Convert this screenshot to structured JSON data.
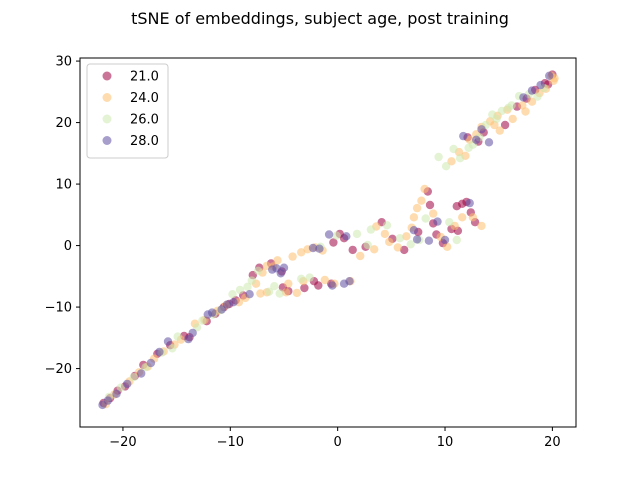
{
  "chart_data": {
    "type": "scatter",
    "title": "tSNE of embeddings, subject age, post training",
    "xlabel": "",
    "ylabel": "",
    "xlim": [
      -24,
      22.2
    ],
    "ylim": [
      -29.5,
      30.5
    ],
    "xticks": [
      -20,
      -10,
      0,
      10,
      20
    ],
    "yticks": [
      -20,
      -10,
      0,
      10,
      20,
      30
    ],
    "grid": false,
    "legend_position": "top-left",
    "series": [
      {
        "name": "21.0",
        "color": "#9e0142",
        "points": [
          [
            -21.8,
            -25.6
          ],
          [
            -21.2,
            -24.8
          ],
          [
            -20.5,
            -23.6
          ],
          [
            -19.8,
            -22.9
          ],
          [
            -18.9,
            -21.2
          ],
          [
            -18.1,
            -19.4
          ],
          [
            -16.8,
            -17.6
          ],
          [
            -15.6,
            -16.2
          ],
          [
            -14.3,
            -14.7
          ],
          [
            -13.8,
            -14.9
          ],
          [
            -12.2,
            -12.3
          ],
          [
            -11.4,
            -11.1
          ],
          [
            -10.6,
            -10.0
          ],
          [
            -10.1,
            -9.5
          ],
          [
            -9.5,
            -8.9
          ],
          [
            -8.8,
            -8.1
          ],
          [
            -7.9,
            -4.8
          ],
          [
            -7.3,
            -3.6
          ],
          [
            -6.2,
            -2.9
          ],
          [
            -5.2,
            -4.2
          ],
          [
            -5.1,
            -6.8
          ],
          [
            -4.6,
            -7.4
          ],
          [
            -3.1,
            -6.9
          ],
          [
            -2.2,
            -5.8
          ],
          [
            -1.8,
            -6.5
          ],
          [
            -0.6,
            -6.2
          ],
          [
            -0.4,
            0.5
          ],
          [
            0.2,
            1.9
          ],
          [
            0.6,
            1.2
          ],
          [
            1.4,
            -0.7
          ],
          [
            2.6,
            -0.2
          ],
          [
            4.1,
            3.8
          ],
          [
            5.1,
            1.1
          ],
          [
            6.2,
            -0.7
          ],
          [
            7.5,
            2.2
          ],
          [
            8.4,
            8.8
          ],
          [
            8.6,
            6.6
          ],
          [
            8.9,
            3.6
          ],
          [
            9.2,
            1.8
          ],
          [
            9.8,
            0.4
          ],
          [
            10.6,
            2.7
          ],
          [
            11.1,
            6.4
          ],
          [
            11.6,
            6.8
          ],
          [
            12.0,
            7.1
          ],
          [
            12.4,
            5.4
          ],
          [
            12.8,
            3.8
          ],
          [
            11.2,
            2.4
          ],
          [
            12.1,
            17.6
          ],
          [
            13.1,
            16.9
          ],
          [
            13.6,
            18.4
          ],
          [
            15.6,
            19.6
          ],
          [
            16.7,
            22.6
          ],
          [
            17.6,
            23.9
          ],
          [
            18.4,
            25.3
          ],
          [
            19.3,
            26.4
          ],
          [
            20.0,
            27.8
          ],
          [
            19.6,
            26.2
          ]
        ]
      },
      {
        "name": "24.0",
        "color": "#fdbf6f",
        "points": [
          [
            -21.6,
            -25.8
          ],
          [
            -20.8,
            -24.2
          ],
          [
            -19.4,
            -22.1
          ],
          [
            -18.5,
            -20.6
          ],
          [
            -17.7,
            -19.7
          ],
          [
            -17.1,
            -18.4
          ],
          [
            -16.2,
            -17.2
          ],
          [
            -15.2,
            -16.1
          ],
          [
            -14.6,
            -15.3
          ],
          [
            -13.3,
            -12.7
          ],
          [
            -12.4,
            -12.1
          ],
          [
            -11.2,
            -10.6
          ],
          [
            -10.4,
            -9.7
          ],
          [
            -9.2,
            -9.2
          ],
          [
            -8.6,
            -8.5
          ],
          [
            -7.6,
            -6.2
          ],
          [
            -7.0,
            -4.4
          ],
          [
            -6.6,
            -3.3
          ],
          [
            -6.0,
            -3.4
          ],
          [
            -5.6,
            -2.4
          ],
          [
            -4.2,
            -1.8
          ],
          [
            -3.4,
            -1.1
          ],
          [
            -2.8,
            -0.6
          ],
          [
            -2.1,
            -0.3
          ],
          [
            -1.4,
            -0.8
          ],
          [
            -4.6,
            -6.2
          ],
          [
            -3.8,
            -7.7
          ],
          [
            -4.8,
            -7.6
          ],
          [
            -6.6,
            -7.6
          ],
          [
            -7.2,
            -7.8
          ],
          [
            -3.2,
            -5.8
          ],
          [
            -1.2,
            -5.6
          ],
          [
            -0.3,
            -6.2
          ],
          [
            1.2,
            -5.8
          ],
          [
            2.1,
            -1.7
          ],
          [
            3.4,
            -0.6
          ],
          [
            3.6,
            3.1
          ],
          [
            4.4,
            1.9
          ],
          [
            4.8,
            0.6
          ],
          [
            5.6,
            -0.3
          ],
          [
            6.4,
            1.5
          ],
          [
            6.9,
            2.9
          ],
          [
            7.1,
            4.6
          ],
          [
            7.4,
            6.1
          ],
          [
            7.8,
            7.3
          ],
          [
            8.1,
            9.2
          ],
          [
            8.9,
            5.2
          ],
          [
            9.6,
            1.4
          ],
          [
            10.2,
            -0.2
          ],
          [
            10.9,
            3.2
          ],
          [
            11.6,
            4.6
          ],
          [
            12.6,
            4.6
          ],
          [
            13.4,
            3.2
          ],
          [
            10.6,
            13.7
          ],
          [
            11.3,
            15.2
          ],
          [
            11.9,
            14.6
          ],
          [
            12.3,
            17.2
          ],
          [
            12.9,
            18.1
          ],
          [
            13.4,
            19.3
          ],
          [
            14.2,
            20.2
          ],
          [
            14.9,
            21.1
          ],
          [
            15.8,
            22.1
          ],
          [
            16.3,
            20.6
          ],
          [
            17.2,
            22.8
          ],
          [
            18.1,
            23.4
          ],
          [
            18.8,
            24.8
          ],
          [
            19.4,
            25.5
          ],
          [
            20.2,
            27.2
          ],
          [
            20.1,
            26.8
          ],
          [
            19.9,
            27.6
          ],
          [
            17.5,
            21.8
          ],
          [
            15.1,
            18.7
          ],
          [
            14.6,
            19.6
          ]
        ]
      },
      {
        "name": "26.0",
        "color": "#cdeab0",
        "points": [
          [
            -21.3,
            -24.6
          ],
          [
            -20.2,
            -23.1
          ],
          [
            -19.0,
            -21.4
          ],
          [
            -17.9,
            -19.8
          ],
          [
            -16.4,
            -17.4
          ],
          [
            -15.4,
            -16.7
          ],
          [
            -14.9,
            -14.8
          ],
          [
            -13.1,
            -13.3
          ],
          [
            -12.6,
            -12.2
          ],
          [
            -11.6,
            -11.2
          ],
          [
            -10.9,
            -10.5
          ],
          [
            -9.8,
            -7.9
          ],
          [
            -9.1,
            -7.2
          ],
          [
            -8.4,
            -6.7
          ],
          [
            -8.0,
            -5.7
          ],
          [
            -7.4,
            -4.1
          ],
          [
            -6.4,
            -7.5
          ],
          [
            -5.9,
            -6.6
          ],
          [
            -5.4,
            -7.8
          ],
          [
            -3.4,
            -5.4
          ],
          [
            -2.6,
            -5.2
          ],
          [
            -1.6,
            -0.2
          ],
          [
            -0.1,
            1.6
          ],
          [
            1.8,
            1.9
          ],
          [
            2.8,
            0.1
          ],
          [
            3.1,
            2.6
          ],
          [
            4.6,
            3.3
          ],
          [
            5.8,
            1.2
          ],
          [
            6.8,
            0.2
          ],
          [
            7.6,
            0.9
          ],
          [
            8.2,
            4.4
          ],
          [
            9.4,
            14.4
          ],
          [
            10.1,
            12.9
          ],
          [
            10.8,
            15.7
          ],
          [
            11.4,
            14.2
          ],
          [
            12.2,
            15.9
          ],
          [
            10.4,
            3.8
          ],
          [
            11.1,
            0.9
          ],
          [
            13.8,
            19.6
          ],
          [
            14.4,
            21.3
          ],
          [
            15.3,
            21.9
          ],
          [
            16.2,
            22.8
          ],
          [
            16.9,
            24.3
          ],
          [
            17.8,
            24.6
          ],
          [
            18.6,
            24.2
          ],
          [
            19.2,
            25.6
          ],
          [
            12.6,
            16.4
          ],
          [
            13.2,
            17.6
          ],
          [
            14.8,
            20.6
          ],
          [
            15.9,
            22.4
          ]
        ]
      },
      {
        "name": "28.0",
        "color": "#5e4fa2",
        "points": [
          [
            -21.9,
            -25.9
          ],
          [
            -21.4,
            -25.2
          ],
          [
            -20.6,
            -24.1
          ],
          [
            -19.6,
            -22.5
          ],
          [
            -18.3,
            -20.8
          ],
          [
            -17.4,
            -19.1
          ],
          [
            -16.6,
            -17.3
          ],
          [
            -15.8,
            -15.6
          ],
          [
            -13.9,
            -15.2
          ],
          [
            -13.5,
            -14.2
          ],
          [
            -12.1,
            -11.2
          ],
          [
            -11.7,
            -10.9
          ],
          [
            -10.8,
            -10.4
          ],
          [
            -10.3,
            -9.6
          ],
          [
            -9.7,
            -9.2
          ],
          [
            -8.2,
            -7.9
          ],
          [
            -6.1,
            -3.9
          ],
          [
            -5.7,
            -3.7
          ],
          [
            -5.3,
            -4.5
          ],
          [
            -5.0,
            -3.6
          ],
          [
            -2.3,
            -0.4
          ],
          [
            -1.7,
            -0.5
          ],
          [
            -0.8,
            1.8
          ],
          [
            -0.5,
            -6.5
          ],
          [
            0.6,
            -6.2
          ],
          [
            0.8,
            1.5
          ],
          [
            1.1,
            -5.8
          ],
          [
            7.1,
            2.5
          ],
          [
            7.4,
            1.0
          ],
          [
            8.5,
            0.8
          ],
          [
            9.3,
            3.9
          ],
          [
            10.0,
            0.9
          ],
          [
            12.3,
            6.9
          ],
          [
            11.7,
            17.8
          ],
          [
            12.9,
            17.2
          ],
          [
            13.4,
            18.9
          ],
          [
            14.1,
            16.8
          ],
          [
            18.9,
            26.1
          ],
          [
            19.7,
            27.6
          ],
          [
            18.1,
            25.2
          ],
          [
            17.3,
            24.1
          ]
        ]
      }
    ]
  }
}
